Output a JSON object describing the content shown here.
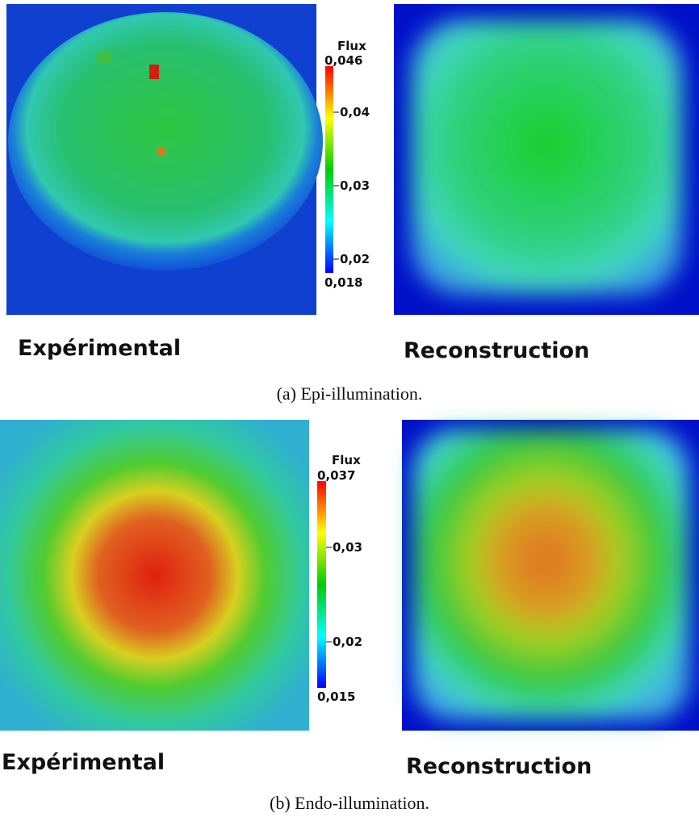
{
  "panels": [
    {
      "colorbar": {
        "title": "Flux",
        "max": "0,046",
        "min": "0,018",
        "ticks": [
          "0,04",
          "0,03",
          "0,02"
        ]
      },
      "left_label": "Expérimental",
      "right_label": "Reconstruction",
      "caption": "(a) Epi-illumination."
    },
    {
      "colorbar": {
        "title": "Flux",
        "max": "0,037",
        "min": "0,015",
        "ticks": [
          "0,03",
          "0,02"
        ]
      },
      "left_label": "Expérimental",
      "right_label": "Reconstruction",
      "caption": "(b) Endo-illumination."
    }
  ]
}
